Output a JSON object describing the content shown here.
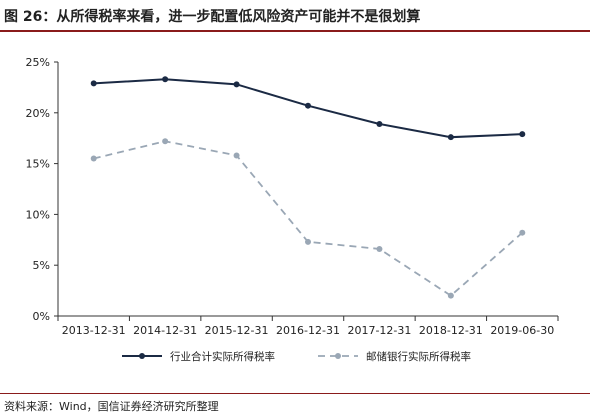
{
  "header": {
    "title": "图 26：从所得税率来看，进一步配置低风险资产可能并不是很划算"
  },
  "footer": {
    "source": "资料来源：Wind，国信证券经济研究所整理"
  },
  "colors": {
    "series_1": "#1b2a44",
    "series_2": "#9aa7b5",
    "accent": "#8a1b1b"
  },
  "chart_data": {
    "type": "line",
    "title": "",
    "xlabel": "",
    "ylabel": "",
    "categories": [
      "2013-12-31",
      "2014-12-31",
      "2015-12-31",
      "2016-12-31",
      "2017-12-31",
      "2018-12-31",
      "2019-06-30"
    ],
    "ylim": [
      0,
      25
    ],
    "yticks": [
      "0%",
      "5%",
      "10%",
      "15%",
      "20%",
      "25%"
    ],
    "grid": false,
    "legend_position": "bottom",
    "series": [
      {
        "name": "行业合计实际所得税率",
        "style": "solid",
        "values": [
          22.9,
          23.3,
          22.8,
          20.7,
          18.9,
          17.6,
          17.9
        ]
      },
      {
        "name": "邮储银行实际所得税率",
        "style": "dashed",
        "values": [
          15.5,
          17.2,
          15.8,
          7.3,
          6.6,
          2.0,
          8.2
        ]
      }
    ]
  }
}
